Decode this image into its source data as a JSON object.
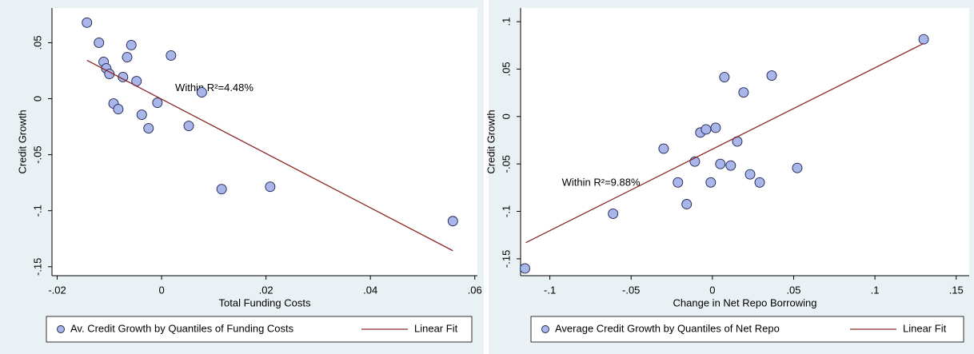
{
  "chart_data": [
    {
      "type": "scatter",
      "x_label": "Total Funding Costs",
      "y_label": "Credit Growth",
      "annotation": {
        "text": "Within R²=4.48%",
        "x": 0.0026,
        "y": 0.0093
      },
      "xlim": [
        -0.021,
        0.0605
      ],
      "ylim": [
        -0.158,
        0.081
      ],
      "xticks": [
        {
          "value": -0.02,
          "label": "-.02"
        },
        0,
        {
          "value": 0.02,
          "label": ".02"
        },
        {
          "value": 0.04,
          "label": ".04"
        },
        {
          "value": 0.06,
          "label": ".06"
        }
      ],
      "yticks": [
        {
          "value": 0.05,
          "label": ".05"
        },
        0,
        {
          "value": -0.05,
          "label": "-.05"
        },
        {
          "value": -0.1,
          "label": "-.1"
        },
        {
          "value": -0.15,
          "label": "-.15"
        }
      ],
      "series": [
        {
          "name": "Av. Credit Growth by Quantiles of Funding Costs",
          "type": "scatter",
          "color": "#a9b6ea",
          "x": [
            -0.0143,
            -0.012,
            -0.0111,
            -0.0106,
            -0.01,
            -0.0092,
            -0.0083,
            -0.0074,
            -0.0066,
            -0.0058,
            -0.0048,
            -0.0038,
            -0.0025,
            -0.0008,
            0.0018,
            0.0052,
            0.0077,
            0.0115,
            0.0208,
            0.0558
          ],
          "values": [
            0.0679,
            0.05,
            0.0329,
            0.0271,
            0.0221,
            -0.0043,
            -0.0093,
            0.0193,
            0.0371,
            0.0479,
            0.0157,
            -0.0143,
            -0.0264,
            -0.0036,
            0.0386,
            -0.0243,
            0.0057,
            -0.0807,
            -0.0786,
            -0.1093
          ]
        },
        {
          "name": "Linear Fit",
          "type": "line",
          "color": "#8b2a2a",
          "x": [
            -0.0143,
            0.0558
          ],
          "values": [
            0.0343,
            -0.1357
          ]
        }
      ]
    },
    {
      "type": "scatter",
      "x_label": "Change in Net Repo Borrowing",
      "y_label": "Credit Growth",
      "annotation": {
        "text": "Within R²=9.88%",
        "x": -0.0926,
        "y": -0.0703
      },
      "xlim": [
        -0.118,
        0.158
      ],
      "ylim": [
        -0.1678,
        0.1144
      ],
      "xticks": [
        {
          "value": -0.1,
          "label": "-.1"
        },
        {
          "value": -0.05,
          "label": "-.05"
        },
        0,
        {
          "value": 0.05,
          "label": ".05"
        },
        {
          "value": 0.1,
          "label": ".1"
        },
        {
          "value": 0.15,
          "label": ".15"
        }
      ],
      "yticks": [
        {
          "value": 0.1,
          "label": ".1"
        },
        {
          "value": 0.05,
          "label": ".05"
        },
        0,
        {
          "value": -0.05,
          "label": "-.05"
        },
        {
          "value": -0.1,
          "label": "-.1"
        },
        {
          "value": -0.15,
          "label": "-.15"
        }
      ],
      "series": [
        {
          "name": "Average Credit Growth by Quantiles of Net Repo",
          "type": "scatter",
          "color": "#a9b6ea",
          "x": [
            -0.1153,
            -0.0611,
            -0.03,
            -0.0212,
            -0.0158,
            -0.0108,
            -0.0074,
            -0.0039,
            -0.001,
            0.002,
            0.0049,
            0.0074,
            0.0113,
            0.0153,
            0.0192,
            0.0232,
            0.0291,
            0.0365,
            0.0522,
            0.13
          ],
          "values": [
            -0.1602,
            -0.1025,
            -0.0339,
            -0.0695,
            -0.0924,
            -0.0475,
            -0.0169,
            -0.0136,
            -0.0695,
            -0.0119,
            -0.05,
            0.0415,
            -0.0517,
            -0.0263,
            0.0254,
            -0.061,
            -0.0695,
            0.0432,
            -0.0542,
            0.0814
          ]
        },
        {
          "name": "Linear Fit",
          "type": "line",
          "color": "#8b2a2a",
          "x": [
            -0.1148,
            0.13
          ],
          "values": [
            -0.133,
            0.0771
          ]
        }
      ]
    }
  ]
}
